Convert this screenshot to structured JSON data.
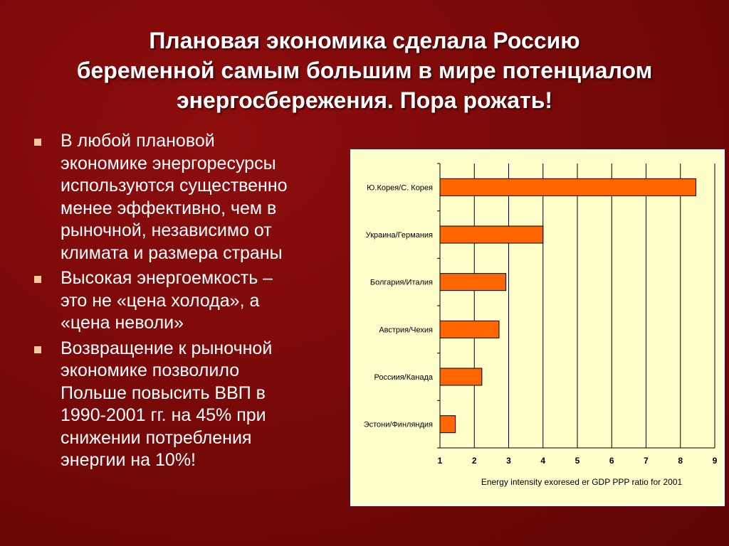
{
  "slide": {
    "title_lines": [
      "Плановая экономика сделала Россию",
      "беременной самым большим в мире потенциалом",
      "энергосбережения. Пора рожать!"
    ],
    "bullets": [
      {
        "lines": [
          "В любой плановой",
          "экономике энергоресурсы",
          "используются существенно",
          "менее эффективно, чем в",
          "рыночной, независимо от",
          "климата и размера страны"
        ]
      },
      {
        "lines": [
          "Высокая энергоемкость –",
          "это не «цена холода», а",
          "«цена неволи»"
        ]
      },
      {
        "lines": [
          "Возвращение к рыночной",
          "экономике позволило",
          "Польше повысить ВВП в",
          "1990-2001 гг. на 45% при",
          "снижении потребления",
          "энергии на 10%!"
        ]
      }
    ]
  },
  "colors": {
    "background": "#7a0909",
    "bar_fill": "#ff6600",
    "chart_background": "#ffffcc",
    "bullet_marker": "#f5c99a"
  },
  "chart_data": {
    "type": "bar",
    "orientation": "horizontal",
    "categories": [
      "Ю.Корея/С. Корея",
      "Украина/Германия",
      "Болгария/Италия",
      "Австрия/Чехия",
      "Россиия/Канада",
      "Эстони/Финляндия"
    ],
    "values": [
      8.45,
      4.0,
      2.92,
      2.72,
      2.22,
      1.45
    ],
    "xlim": [
      1,
      9
    ],
    "xticks": [
      "1",
      "2",
      "3",
      "4",
      "5",
      "6",
      "7",
      "8",
      "9"
    ],
    "xlabel": "Energy intensity exoresed er GDP PPP ratio for 2001",
    "ylabel": "",
    "grid": "vertical",
    "legend": "none"
  }
}
